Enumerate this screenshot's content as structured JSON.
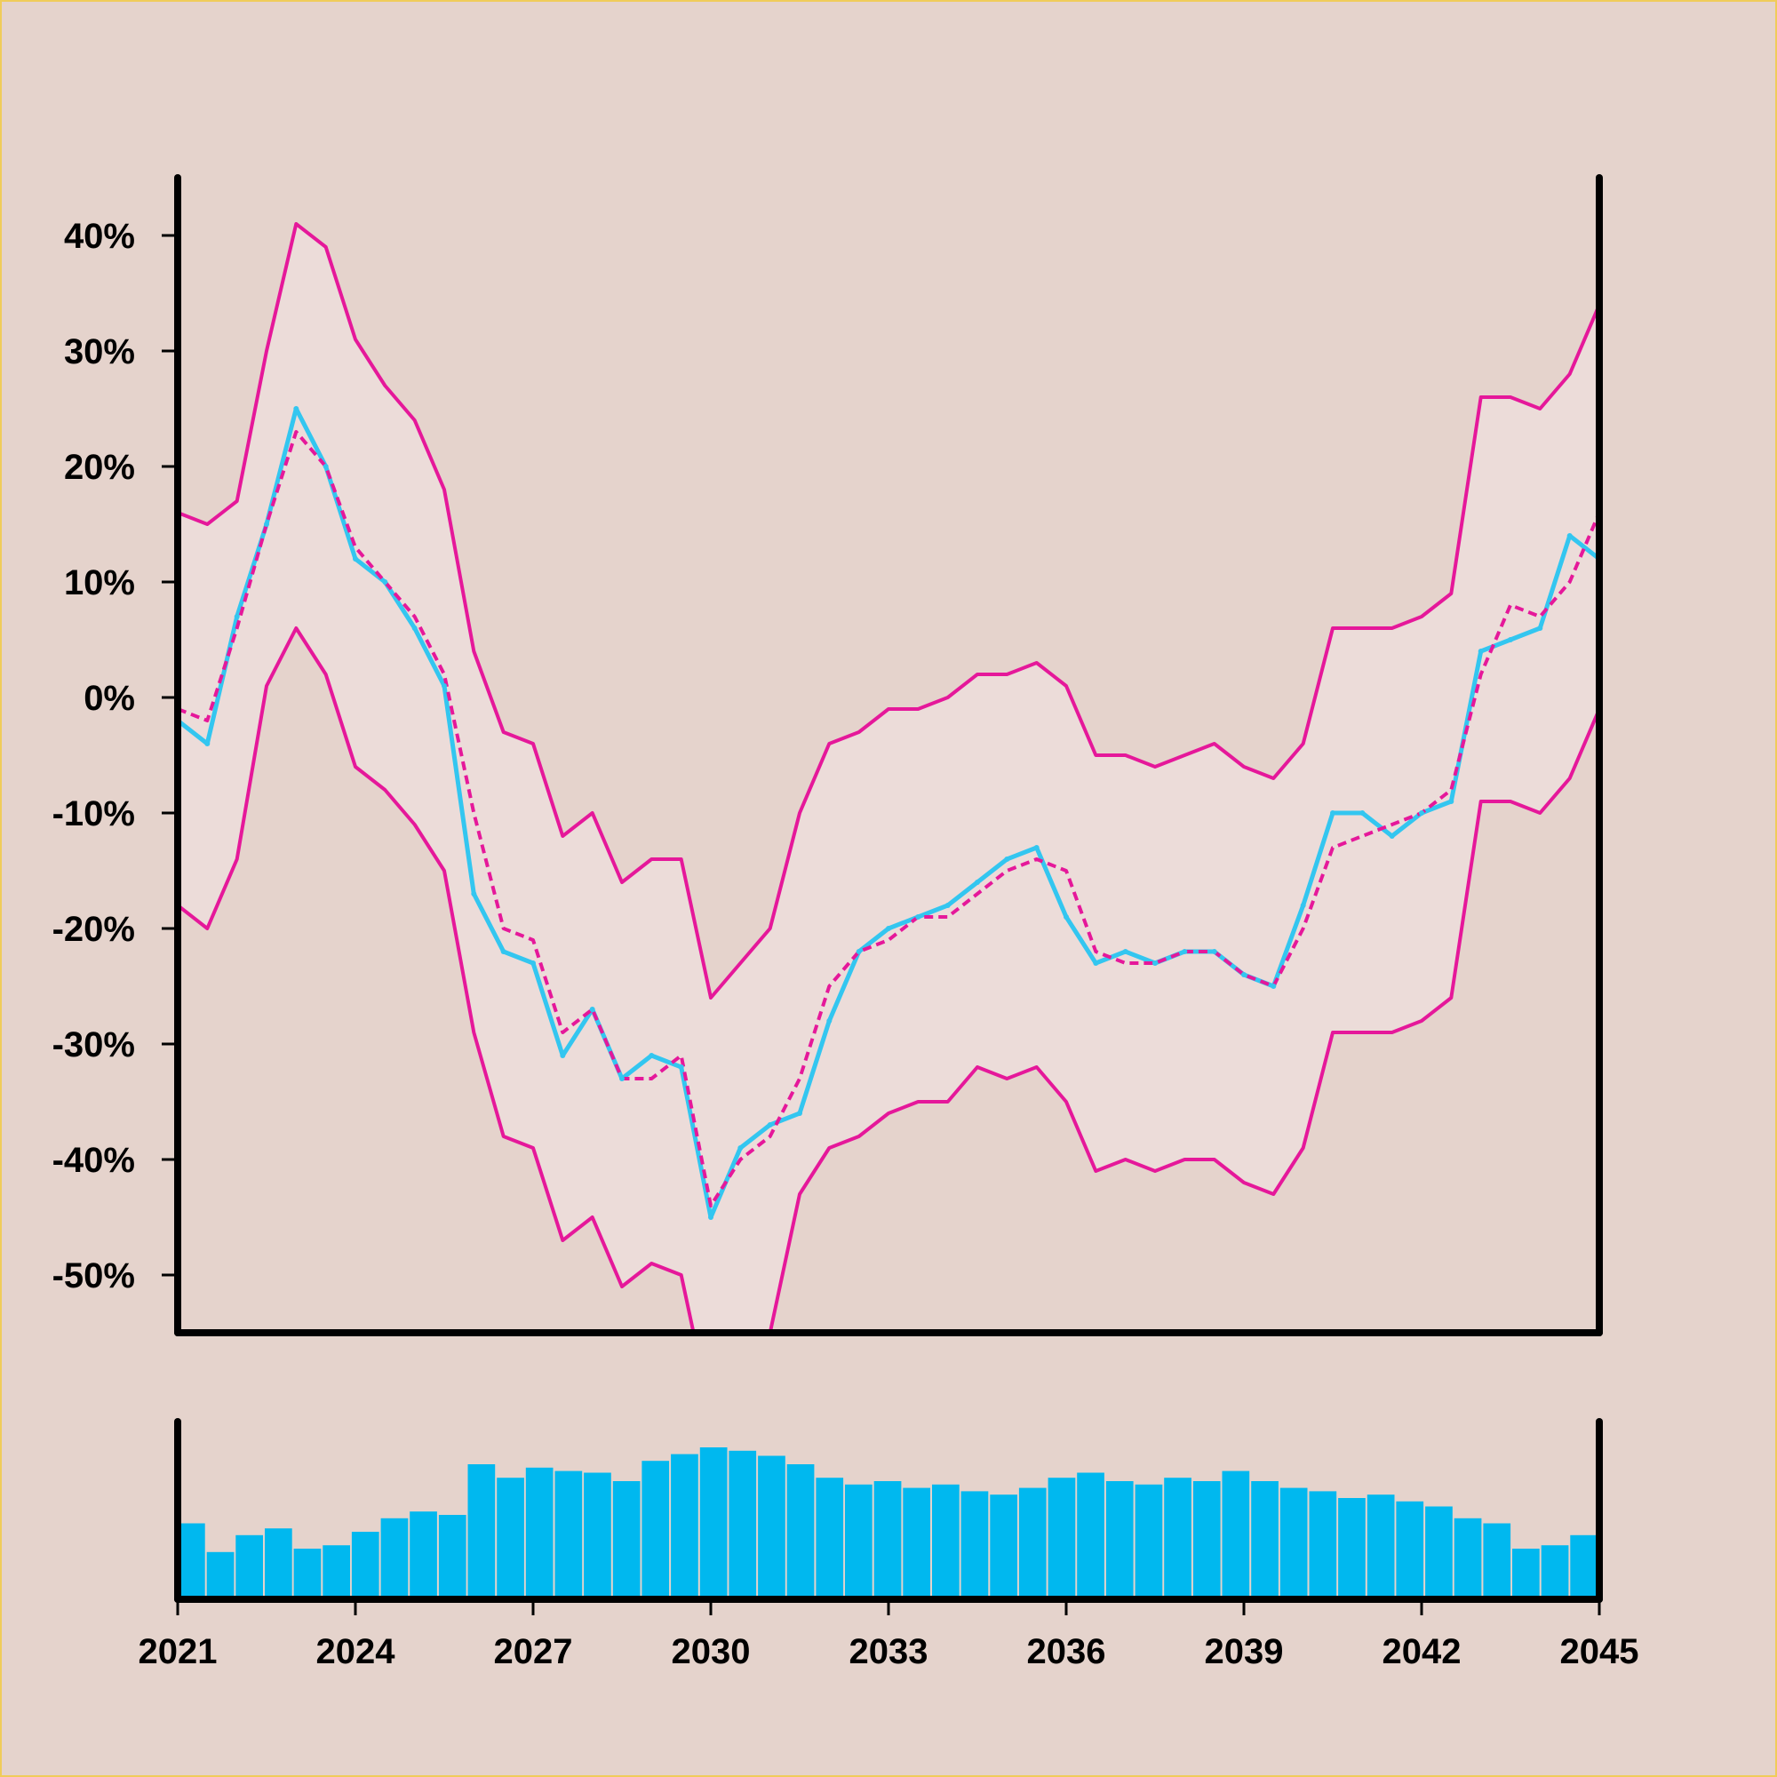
{
  "colors": {
    "background": "#e5d3cc",
    "frame_border": "#f0cc5a",
    "band_fill": "#ecdcd9",
    "band_line": "#e5189a",
    "price_line": "#33c6f0",
    "volume_bar": "#00b8ef",
    "axis": "#000000"
  },
  "chart_data": {
    "type": "line",
    "title": "",
    "xlabel": "",
    "ylabel": "",
    "xlim": [
      2021,
      2045
    ],
    "ylim": [
      -55,
      45
    ],
    "x_ticks": [
      2021,
      2024,
      2027,
      2030,
      2033,
      2036,
      2039,
      2042,
      2045
    ],
    "x_tick_labels": [
      "2021",
      "2024",
      "2027",
      "2030",
      "2033",
      "2036",
      "2039",
      "2042",
      "2045"
    ],
    "y_ticks": [
      40,
      30,
      20,
      10,
      0,
      -10,
      -20,
      -30,
      -40,
      -50
    ],
    "y_tick_labels": [
      "40%",
      "30%",
      "20%",
      "10%",
      "0%",
      "-10%",
      "-20%",
      "-30%",
      "-40%",
      "-50%"
    ],
    "grid": false,
    "legend": "none",
    "x": [
      2021.0,
      2021.5,
      2022.0,
      2022.5,
      2023.0,
      2023.5,
      2024.0,
      2024.5,
      2025.0,
      2025.5,
      2026.0,
      2026.5,
      2027.0,
      2027.5,
      2028.0,
      2028.5,
      2029.0,
      2029.5,
      2030.0,
      2030.5,
      2031.0,
      2031.5,
      2032.0,
      2032.5,
      2033.0,
      2033.5,
      2034.0,
      2034.5,
      2035.0,
      2035.5,
      2036.0,
      2036.5,
      2037.0,
      2037.5,
      2038.0,
      2038.5,
      2039.0,
      2039.5,
      2040.0,
      2040.5,
      2041.0,
      2041.5,
      2042.0,
      2042.5,
      2043.0,
      2043.5,
      2044.0,
      2044.5,
      2045.0
    ],
    "series": [
      {
        "role": "price",
        "style": "solid",
        "values": [
          -2,
          -4,
          7,
          15,
          25,
          20,
          12,
          10,
          6,
          1,
          -17,
          -22,
          -23,
          -31,
          -27,
          -33,
          -31,
          -32,
          -45,
          -39,
          -37,
          -36,
          -28,
          -22,
          -20,
          -19,
          -18,
          -16,
          -14,
          -13,
          -19,
          -23,
          -22,
          -23,
          -22,
          -22,
          -24,
          -25,
          -18,
          -10,
          -10,
          -12,
          -10,
          -9,
          4,
          5,
          6,
          14,
          12
        ]
      },
      {
        "role": "moving-average",
        "style": "dashed",
        "values": [
          -1,
          -2,
          6,
          15,
          23,
          20,
          13,
          10,
          7,
          2,
          -10,
          -20,
          -21,
          -29,
          -27,
          -33,
          -33,
          -31,
          -44,
          -40,
          -38,
          -33,
          -25,
          -22,
          -21,
          -19,
          -19,
          -17,
          -15,
          -14,
          -15,
          -22,
          -23,
          -23,
          -22,
          -22,
          -24,
          -25,
          -20,
          -13,
          -12,
          -11,
          -10,
          -8,
          2,
          8,
          7,
          10,
          16
        ]
      },
      {
        "role": "upper-band",
        "style": "solid",
        "values": [
          16,
          15,
          17,
          30,
          41,
          39,
          31,
          27,
          24,
          18,
          4,
          -3,
          -4,
          -12,
          -10,
          -16,
          -14,
          -14,
          -26,
          -23,
          -20,
          -10,
          -4,
          -3,
          -1,
          -1,
          0,
          2,
          2,
          3,
          1,
          -5,
          -5,
          -6,
          -5,
          -4,
          -6,
          -7,
          -4,
          6,
          6,
          6,
          7,
          9,
          26,
          26,
          25,
          28,
          34
        ]
      },
      {
        "role": "lower-band",
        "style": "solid",
        "values": [
          -18,
          -20,
          -14,
          1,
          6,
          2,
          -6,
          -8,
          -11,
          -15,
          -29,
          -38,
          -39,
          -47,
          -45,
          -51,
          -49,
          -50,
          -62,
          -60,
          -55,
          -43,
          -39,
          -38,
          -36,
          -35,
          -35,
          -32,
          -33,
          -32,
          -35,
          -41,
          -40,
          -41,
          -40,
          -40,
          -42,
          -43,
          -39,
          -29,
          -29,
          -29,
          -28,
          -26,
          -9,
          -9,
          -10,
          -7,
          -1
        ]
      }
    ],
    "volume": {
      "x": [
        2021.0,
        2021.5,
        2022.0,
        2022.5,
        2023.0,
        2023.5,
        2024.0,
        2024.5,
        2025.0,
        2025.5,
        2026.0,
        2026.5,
        2027.0,
        2027.5,
        2028.0,
        2028.5,
        2029.0,
        2029.5,
        2030.0,
        2030.5,
        2031.0,
        2031.5,
        2032.0,
        2032.5,
        2033.0,
        2033.5,
        2034.0,
        2034.5,
        2035.0,
        2035.5,
        2036.0,
        2036.5,
        2037.0,
        2037.5,
        2038.0,
        2038.5,
        2039.0,
        2039.5,
        2040.0,
        2040.5,
        2041.0,
        2041.5,
        2042.0,
        2042.5,
        2043.0,
        2043.5,
        2044.0,
        2044.5,
        2045.0
      ],
      "values": [
        0.45,
        0.28,
        0.38,
        0.42,
        0.3,
        0.32,
        0.4,
        0.48,
        0.52,
        0.5,
        0.8,
        0.72,
        0.78,
        0.76,
        0.75,
        0.7,
        0.82,
        0.86,
        0.9,
        0.88,
        0.85,
        0.8,
        0.72,
        0.68,
        0.7,
        0.66,
        0.68,
        0.64,
        0.62,
        0.66,
        0.72,
        0.75,
        0.7,
        0.68,
        0.72,
        0.7,
        0.76,
        0.7,
        0.66,
        0.64,
        0.6,
        0.62,
        0.58,
        0.55,
        0.48,
        0.45,
        0.3,
        0.32,
        0.38
      ],
      "max": 1.0
    }
  }
}
